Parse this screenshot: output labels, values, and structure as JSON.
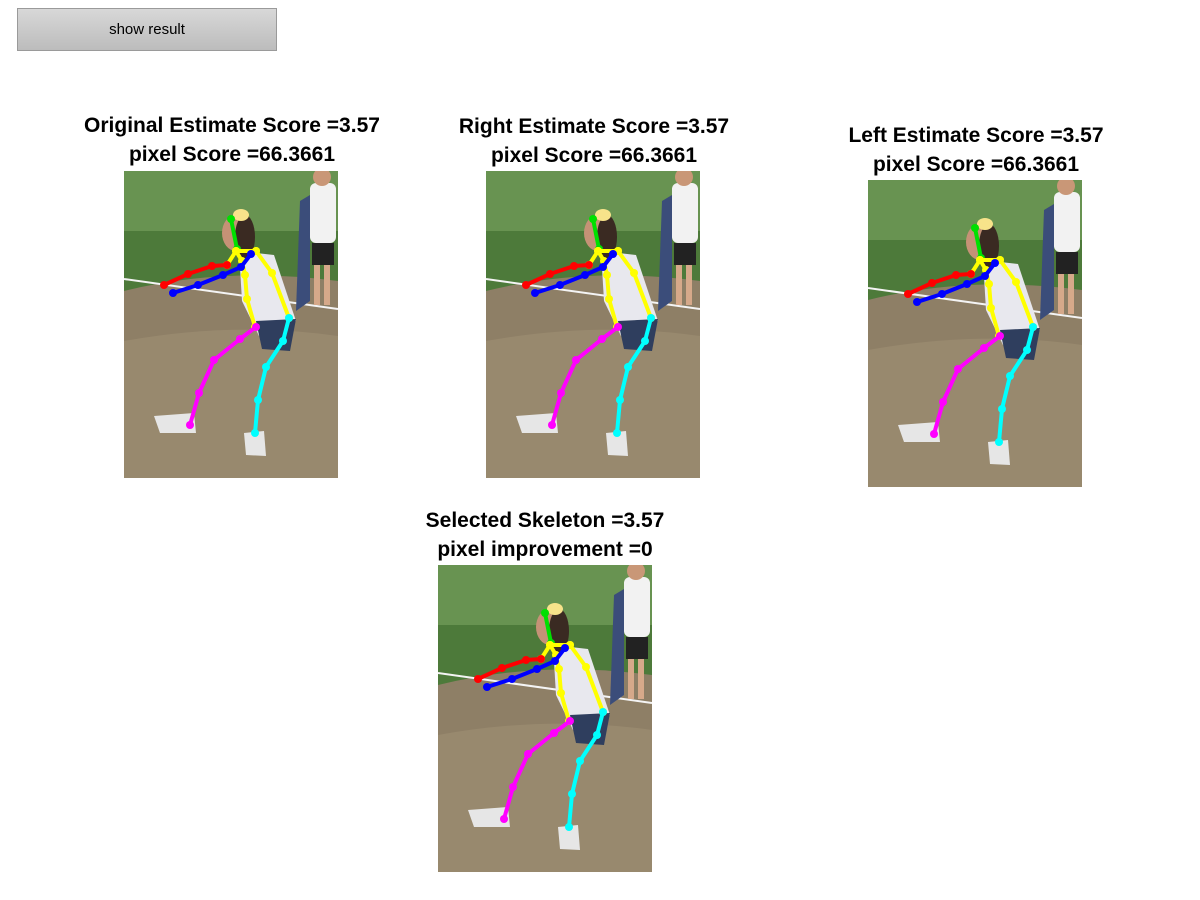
{
  "toolbar": {
    "show_result_label": "show result"
  },
  "panels": [
    {
      "id": "original",
      "title_line1": "Original Estimate Score =3.57",
      "title_line2": "pixel Score =66.3661"
    },
    {
      "id": "right",
      "title_line1": "Right Estimate Score =3.57",
      "title_line2": "pixel Score =66.3661"
    },
    {
      "id": "left",
      "title_line1": "Left Estimate Score =3.57",
      "title_line2": "pixel Score =66.3661"
    },
    {
      "id": "selected",
      "title_line1": "Selected Skeleton =3.57",
      "title_line2": "pixel improvement =0"
    }
  ],
  "skeleton_colors": {
    "head": "#00e000",
    "torso": "#ffff00",
    "right_arm": "#ff0000",
    "left_arm": "#0000ff",
    "right_leg": "#ff00ff",
    "left_leg": "#00ffff"
  }
}
